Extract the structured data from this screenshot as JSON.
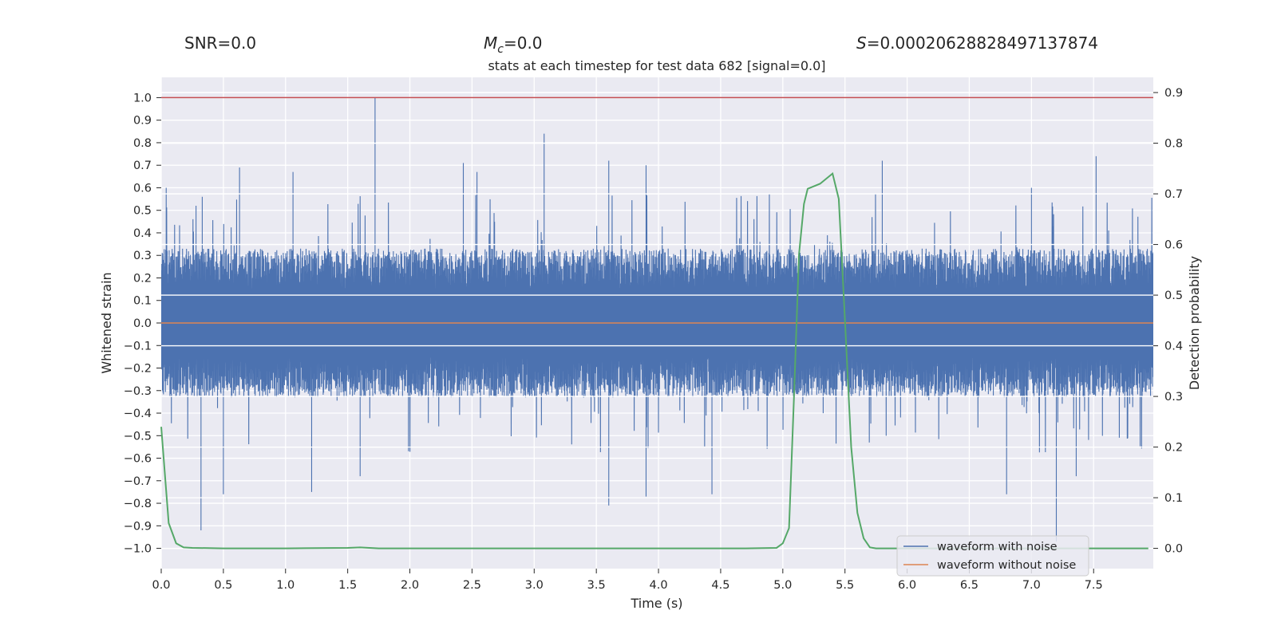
{
  "header": {
    "snr": "SNR=0.0",
    "mc_symbol": "M",
    "mc_sub": "c",
    "mc_value": "=0.0",
    "s_symbol": "S",
    "s_value": "=0.00020628828497137874"
  },
  "chart_data": {
    "type": "line",
    "title": "stats at each timestep for test data 682 [signal=0.0]",
    "xlabel": "Time (s)",
    "ylabel": "Whitened strain",
    "y2label": "Detection probability",
    "xlim": [
      0.0,
      7.98
    ],
    "ylim": [
      -1.09,
      1.09
    ],
    "y2lim": [
      -0.04,
      0.93
    ],
    "xticks": [
      "0.0",
      "0.5",
      "1.0",
      "1.5",
      "2.0",
      "2.5",
      "3.0",
      "3.5",
      "4.0",
      "4.5",
      "5.0",
      "5.5",
      "6.0",
      "6.5",
      "7.0",
      "7.5"
    ],
    "yticks": [
      "1.0",
      "0.9",
      "0.8",
      "0.7",
      "0.6",
      "0.5",
      "0.4",
      "0.3",
      "0.2",
      "0.1",
      "0.0",
      "−0.1",
      "−0.2",
      "−0.3",
      "−0.4",
      "−0.5",
      "−0.6",
      "−0.7",
      "−0.8",
      "−0.9",
      "−1.0"
    ],
    "y2ticks": [
      "0.9",
      "0.8",
      "0.7",
      "0.6",
      "0.5",
      "0.4",
      "0.3",
      "0.2",
      "0.1",
      "0.0"
    ],
    "grid": true,
    "legend_position": "lower-right",
    "threshold_line": {
      "axis": "y",
      "value": 1.0,
      "color": "#c44e52"
    },
    "series": [
      {
        "name": "waveform with noise",
        "axis": "left",
        "color": "#4c72b0",
        "kind": "noise-envelope",
        "typical_range": [
          -0.33,
          0.33
        ],
        "peaks": [
          {
            "x": 0.04,
            "y": 0.6
          },
          {
            "x": 0.28,
            "y": 0.52
          },
          {
            "x": 0.33,
            "y": 0.56
          },
          {
            "x": 0.63,
            "y": 0.69
          },
          {
            "x": 1.06,
            "y": 0.67
          },
          {
            "x": 1.72,
            "y": 1.0
          },
          {
            "x": 2.43,
            "y": 0.71
          },
          {
            "x": 2.54,
            "y": 0.67
          },
          {
            "x": 3.08,
            "y": 0.84
          },
          {
            "x": 3.6,
            "y": 0.72
          },
          {
            "x": 3.9,
            "y": 0.7
          },
          {
            "x": 5.8,
            "y": 0.72
          },
          {
            "x": 7.52,
            "y": 0.74
          },
          {
            "x": 7.0,
            "y": 0.6
          }
        ],
        "troughs": [
          {
            "x": 0.32,
            "y": -0.92
          },
          {
            "x": 0.5,
            "y": -0.76
          },
          {
            "x": 1.21,
            "y": -0.75
          },
          {
            "x": 1.6,
            "y": -0.68
          },
          {
            "x": 3.6,
            "y": -0.81
          },
          {
            "x": 3.9,
            "y": -0.77
          },
          {
            "x": 4.43,
            "y": -0.76
          },
          {
            "x": 6.8,
            "y": -0.76
          },
          {
            "x": 7.2,
            "y": -0.97
          },
          {
            "x": 7.36,
            "y": -0.68
          }
        ]
      },
      {
        "name": "waveform without noise",
        "axis": "left",
        "color": "#dd8452",
        "x": [
          0.0,
          7.98
        ],
        "y": [
          0.0,
          0.0
        ]
      },
      {
        "name": "",
        "axis": "right",
        "color": "#55a868",
        "x": [
          0.0,
          0.06,
          0.12,
          0.18,
          0.25,
          0.5,
          1.0,
          1.5,
          1.6,
          1.75,
          2.0,
          3.0,
          4.0,
          4.7,
          4.95,
          5.0,
          5.05,
          5.09,
          5.13,
          5.17,
          5.2,
          5.25,
          5.3,
          5.35,
          5.4,
          5.45,
          5.5,
          5.55,
          5.6,
          5.65,
          5.7,
          5.75,
          6.0,
          7.0,
          7.94
        ],
        "y": [
          0.24,
          0.05,
          0.01,
          0.002,
          0.001,
          0.0,
          0.0,
          0.001,
          0.002,
          0.0,
          0.0,
          0.0,
          0.0,
          0.0,
          0.001,
          0.01,
          0.04,
          0.3,
          0.58,
          0.68,
          0.71,
          0.715,
          0.72,
          0.73,
          0.74,
          0.69,
          0.45,
          0.2,
          0.07,
          0.02,
          0.002,
          0.0,
          0.0,
          0.0,
          0.0
        ]
      }
    ]
  }
}
